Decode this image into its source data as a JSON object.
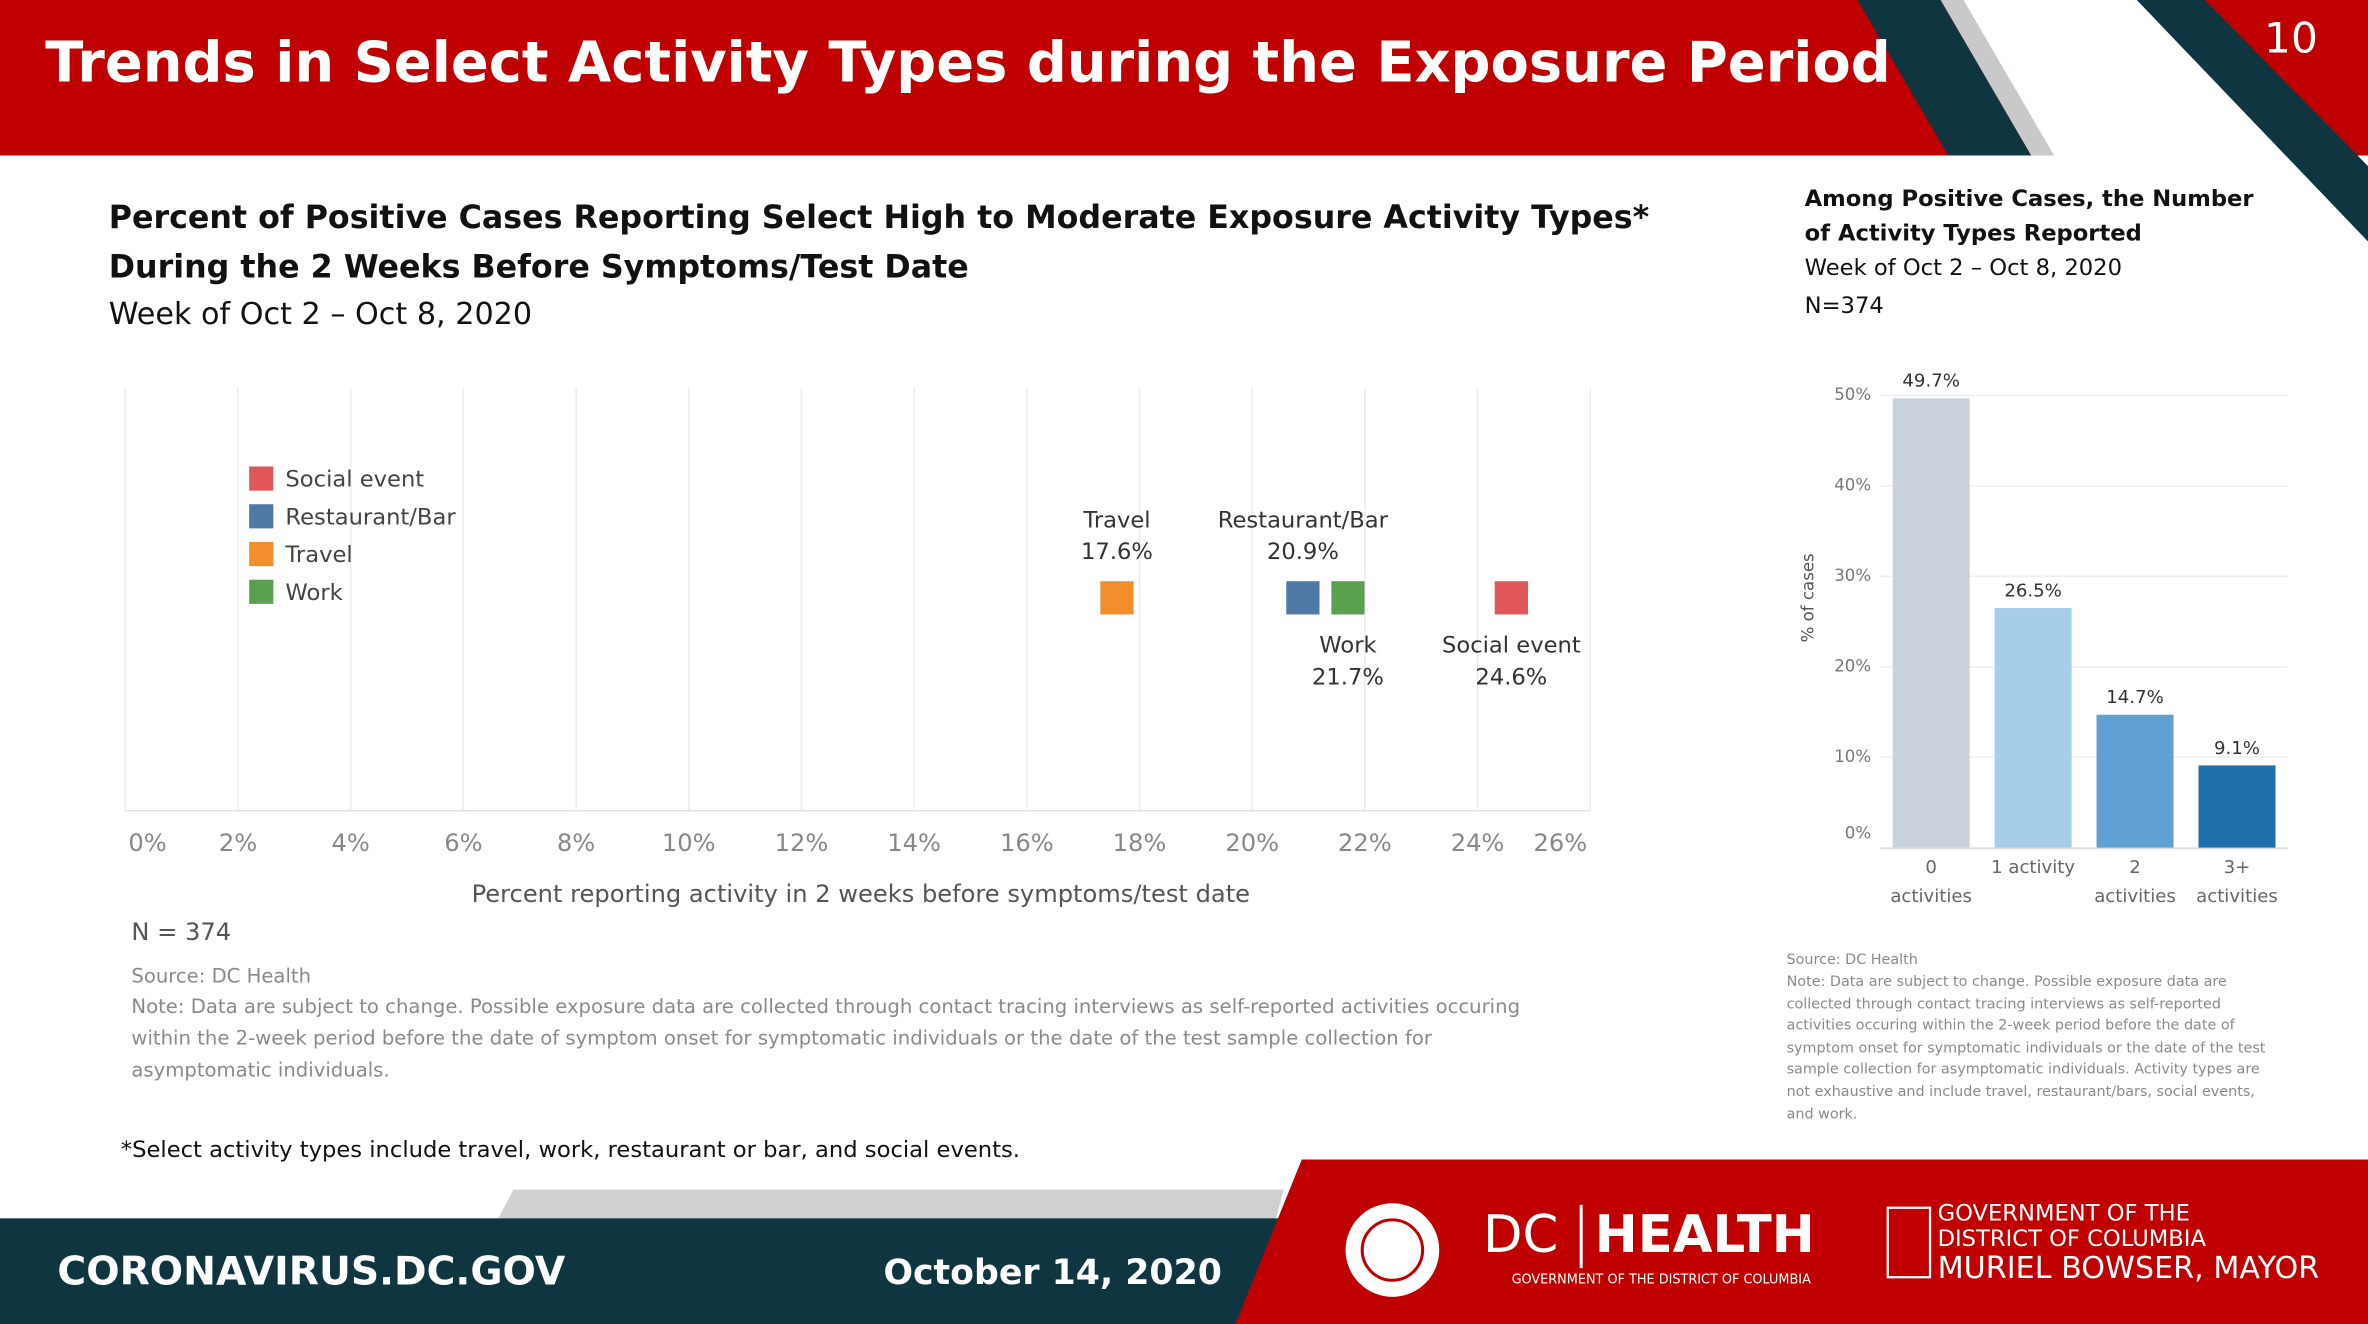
{
  "header": {
    "title": "Trends in Select Activity Types during the Exposure Period",
    "page_number": "10"
  },
  "chart_data": [
    {
      "type": "dot",
      "title": [
        "Percent of Positive Cases Reporting Select High to Moderate Exposure Activity Types*",
        "During the 2 Weeks Before Symptoms/Test Date"
      ],
      "subtitle": "Week of Oct 2 – Oct 8, 2020",
      "xlabel": "Percent reporting activity in 2 weeks before symptoms/test date",
      "xlim": [
        0,
        26
      ],
      "xticks": [
        {
          "value": 0,
          "label": "0%"
        },
        {
          "value": 2,
          "label": "2%"
        },
        {
          "value": 4,
          "label": "4%"
        },
        {
          "value": 6,
          "label": "6%"
        },
        {
          "value": 8,
          "label": "8%"
        },
        {
          "value": 10,
          "label": "10%"
        },
        {
          "value": 12,
          "label": "12%"
        },
        {
          "value": 14,
          "label": "14%"
        },
        {
          "value": 16,
          "label": "16%"
        },
        {
          "value": 18,
          "label": "18%"
        },
        {
          "value": 20,
          "label": "20%"
        },
        {
          "value": 22,
          "label": "22%"
        },
        {
          "value": 24,
          "label": "24%"
        },
        {
          "value": 26,
          "label": "26%"
        }
      ],
      "grid": true,
      "legend": "upper left",
      "series": [
        {
          "name": "Social event",
          "color": "#e15759",
          "values": [
            24.6
          ],
          "value_labels": [
            "24.6%"
          ]
        },
        {
          "name": "Restaurant/Bar",
          "color": "#4e79a7",
          "values": [
            20.9
          ],
          "value_labels": [
            "20.9%"
          ]
        },
        {
          "name": "Travel",
          "color": "#f28e2b",
          "values": [
            17.6
          ],
          "value_labels": [
            "17.6%"
          ]
        },
        {
          "name": "Work",
          "color": "#59a14f",
          "values": [
            21.7
          ],
          "value_labels": [
            "21.7%"
          ]
        }
      ],
      "n_label": "N = 374",
      "source": "Source: DC Health",
      "note": "Note: Data are subject to change. Possible exposure data are collected through contact tracing interviews as self-reported activities occuring within the 2-week period before the date of symptom onset for symptomatic individuals or the date of the test sample collection for asymptomatic individuals."
    },
    {
      "type": "bar",
      "title": [
        "Among Positive Cases, the Number",
        "of Activity Types Reported"
      ],
      "subtitle": "Week of Oct 2 – Oct 8, 2020",
      "n_label": "N=374",
      "ylabel": "% of cases",
      "categories": [
        "0 activities",
        "1 activity",
        "2 activities",
        "3+ activities"
      ],
      "values": [
        49.7,
        26.5,
        14.7,
        9.1
      ],
      "value_labels": [
        "49.7%",
        "26.5%",
        "14.7%",
        "9.1%"
      ],
      "colors": [
        "#c8d1dc",
        "#a6cde9",
        "#5fa2d2",
        "#1f6fab"
      ],
      "ylim": [
        0,
        50
      ],
      "yticks": [
        {
          "value": 0,
          "label": "0%"
        },
        {
          "value": 10,
          "label": "10%"
        },
        {
          "value": 20,
          "label": "20%"
        },
        {
          "value": 30,
          "label": "30%"
        },
        {
          "value": 40,
          "label": "40%"
        },
        {
          "value": 50,
          "label": "50%"
        }
      ],
      "grid": true,
      "source": "Source: DC Health",
      "note": "Note: Data are subject to change. Possible exposure data are collected through contact tracing interviews as self-reported activities occuring within the 2-week period before the date of symptom onset for symptomatic individuals or the date of the test sample collection for asymptomatic individuals. Activity types are not exhaustive and include travel, restaurant/bars, social events, and work."
    }
  ],
  "footnote": "*Select activity types include travel, work, restaurant or bar, and social events.",
  "footer": {
    "website": "CORONAVIRUS.DC.GOV",
    "date": "October 14, 2020",
    "dc": "DC",
    "health": "HEALTH",
    "health_sub": "GOVERNMENT OF THE DISTRICT OF COLUMBIA",
    "gov": [
      "GOVERNMENT OF THE",
      "DISTRICT OF COLUMBIA",
      "MURIEL BOWSER, MAYOR"
    ]
  }
}
